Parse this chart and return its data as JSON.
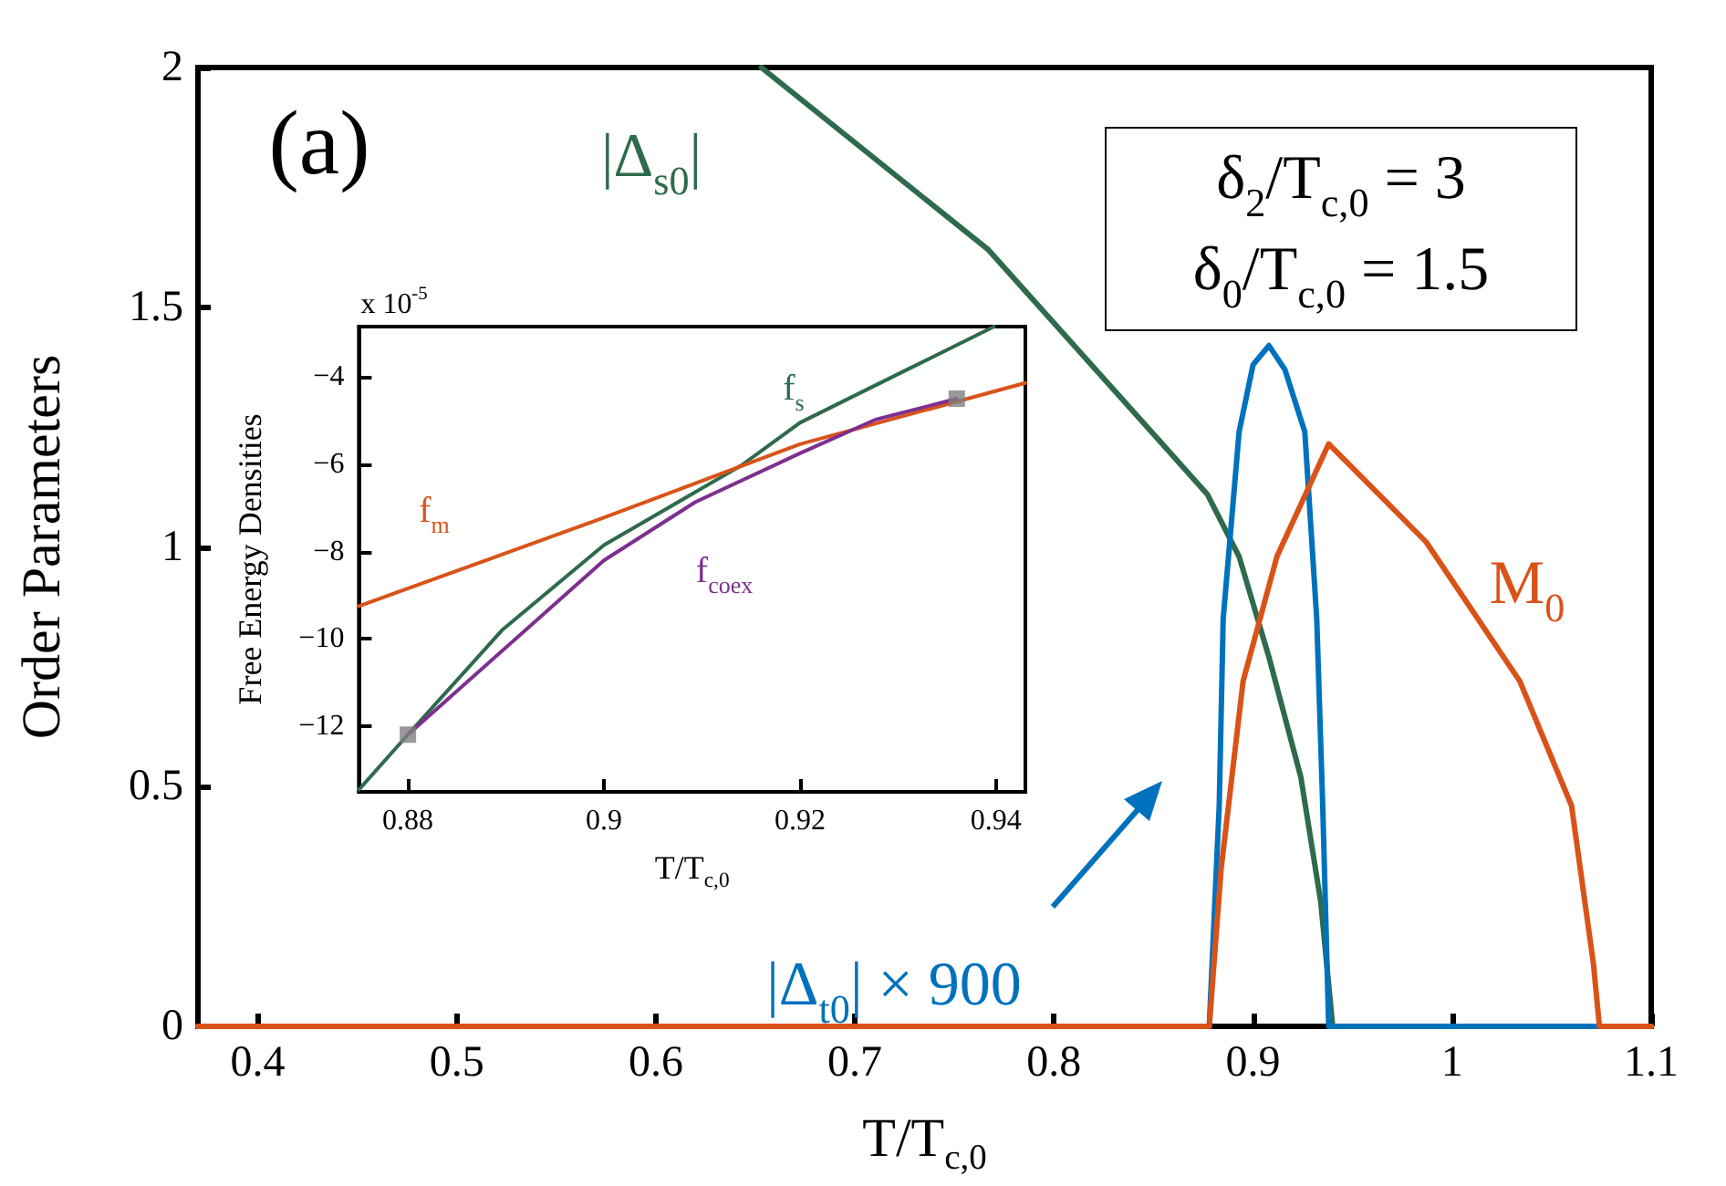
{
  "chart_data": [
    {
      "type": "line",
      "xlabel": "T/T$_{c,0}$",
      "ylabel": "Order Parameters",
      "xlim": [
        0.37,
        1.1
      ],
      "ylim": [
        0,
        2
      ],
      "xticks": [
        0.4,
        0.5,
        0.6,
        0.7,
        0.8,
        0.9,
        1,
        1.1
      ],
      "yticks": [
        0,
        0.5,
        1,
        1.5,
        2
      ],
      "marker": "none",
      "line_style": "solid",
      "series": [
        {
          "name": "|Δ$_{s0}$|",
          "color": "#2e6a4c",
          "x": [
            0.653,
            0.767,
            0.877,
            0.893,
            0.908,
            0.924,
            0.934,
            0.94,
            1.1
          ],
          "values": [
            2,
            1.62,
            1.11,
            0.98,
            0.77,
            0.52,
            0.26,
            0,
            0
          ]
        },
        {
          "name": "|Δ$_{t0}$| × 900",
          "color": "#0072bd",
          "x": [
            0.37,
            0.878,
            0.883,
            0.885,
            0.893,
            0.9,
            0.908,
            0.916,
            0.926,
            0.932,
            0.935,
            0.938,
            1.1
          ],
          "values": [
            0,
            0,
            0.46,
            0.85,
            1.24,
            1.38,
            1.42,
            1.37,
            1.24,
            0.85,
            0.46,
            0,
            0
          ]
        },
        {
          "name": "M$_{0}$",
          "color": "#d95319",
          "x": [
            0.37,
            0.878,
            0.884,
            0.895,
            0.912,
            0.938,
            0.987,
            1.034,
            1.06,
            1.071,
            1.074,
            1.1
          ],
          "values": [
            0,
            0,
            0.33,
            0.72,
            0.98,
            1.215,
            1.01,
            0.72,
            0.46,
            0.13,
            0,
            0
          ]
        }
      ],
      "annotations": [
        "(a)",
        "δ$_{2}$/T$_{c,0}$ = 3",
        "δ$_{0}$/T$_{c,0}$ = 1.5"
      ]
    },
    {
      "type": "line",
      "xlabel": "T/T$_{c,0}$",
      "ylabel": "Free Energy Densities",
      "xlim": [
        0.875,
        0.943
      ],
      "ylim": [
        -13.5,
        -2.85
      ],
      "xticks": [
        0.88,
        0.9,
        0.92,
        0.94
      ],
      "yticks": [
        -12,
        -10,
        -8,
        -6,
        -4
      ],
      "marker": "none",
      "line_style": "solid",
      "series": [
        {
          "name": "f$_{s}$",
          "color": "#2e6a4c",
          "x": [
            0.875,
            0.88,
            0.8896,
            0.9,
            0.914,
            0.92,
            0.9307,
            0.9398
          ],
          "values": [
            -13.45,
            -12.19,
            -9.8,
            -7.85,
            -6.03,
            -5.05,
            -3.86,
            -2.85
          ]
        },
        {
          "name": "f$_{m}$",
          "color": "#d95319",
          "x": [
            0.875,
            0.9,
            0.92,
            0.943
          ],
          "values": [
            -9.25,
            -7.22,
            -5.54,
            -4.14
          ]
        },
        {
          "name": "f$_{coex}$",
          "color": "#7e2f8e",
          "x": [
            0.88,
            0.9,
            0.9093,
            0.92,
            0.9277,
            0.936
          ],
          "values": [
            -12.19,
            -8.2,
            -6.87,
            -5.75,
            -4.98,
            -4.5
          ]
        },
        {
          "type": "scatter",
          "marker": "square",
          "color": "#808080",
          "x": [
            0.88,
            0.936
          ],
          "values": [
            -12.19,
            -4.5
          ]
        }
      ],
      "annotations": [
        "x 10$^{-5}$"
      ]
    }
  ]
}
